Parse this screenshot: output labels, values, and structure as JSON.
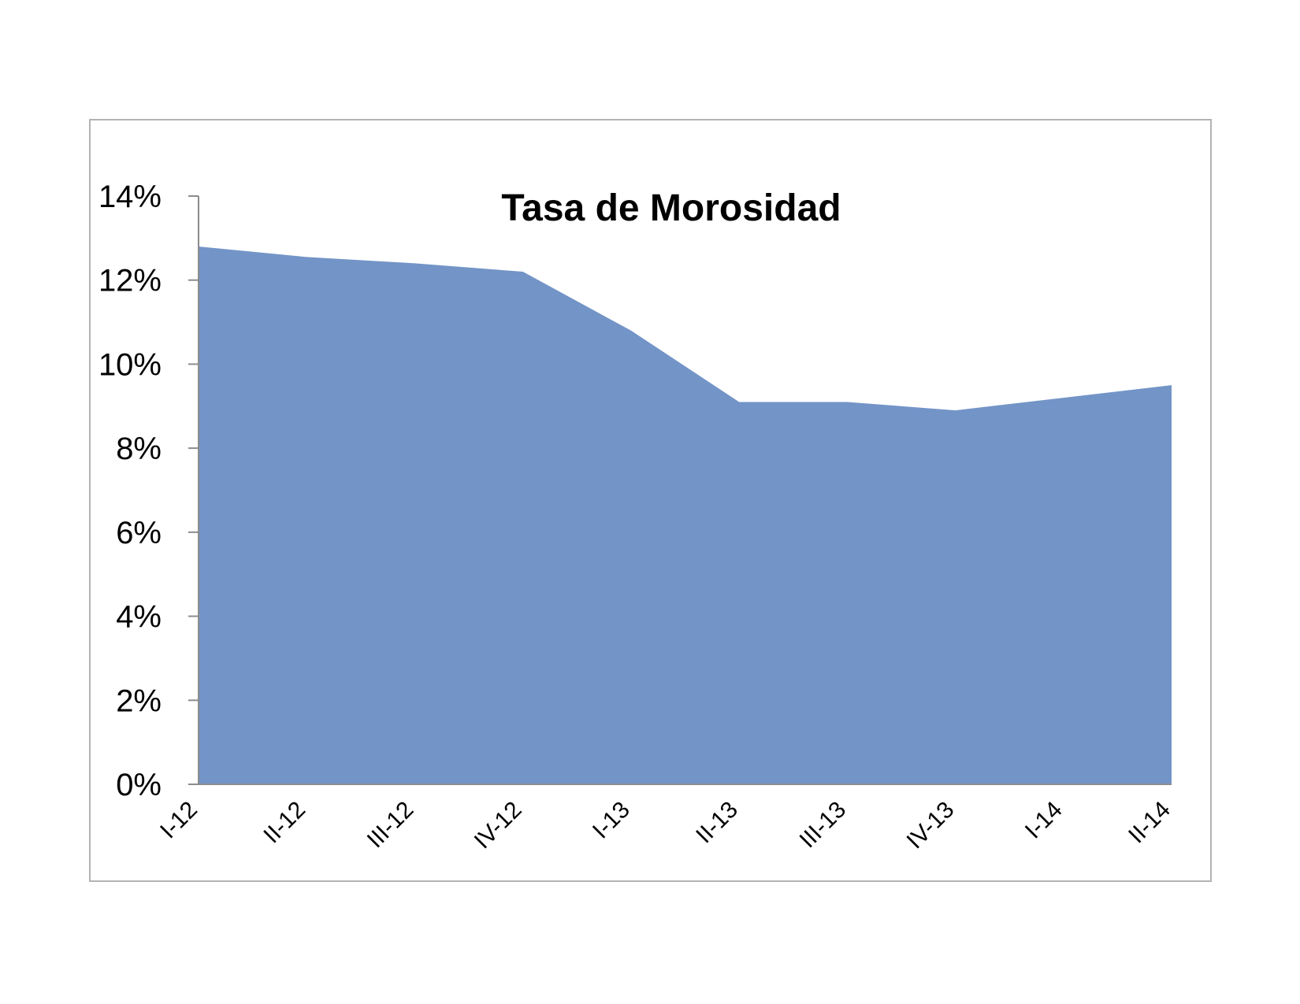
{
  "chart_data": {
    "type": "area",
    "title": "Tasa de Morosidad",
    "xlabel": "",
    "ylabel": "",
    "categories": [
      "I-12",
      "II-12",
      "III-12",
      "IV-12",
      "I-13",
      "II-13",
      "III-13",
      "IV-13",
      "I-14",
      "II-14"
    ],
    "series": [
      {
        "values": [
          12.8,
          12.55,
          12.4,
          12.2,
          10.8,
          9.1,
          9.1,
          8.9,
          9.2,
          9.5
        ],
        "color": "#7394C7"
      }
    ],
    "y_ticks": [
      "0%",
      "2%",
      "4%",
      "6%",
      "8%",
      "10%",
      "12%",
      "14%"
    ],
    "y_tick_values": [
      0,
      2,
      4,
      6,
      8,
      10,
      12,
      14
    ],
    "ylim": [
      0,
      14
    ],
    "unit": "%",
    "grid": false,
    "legend": "none"
  }
}
